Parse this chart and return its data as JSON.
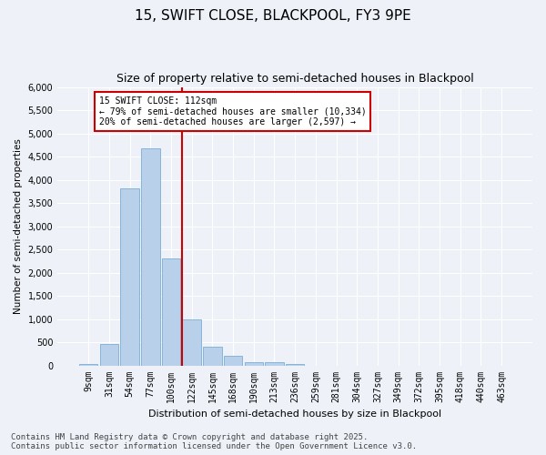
{
  "title": "15, SWIFT CLOSE, BLACKPOOL, FY3 9PE",
  "subtitle": "Size of property relative to semi-detached houses in Blackpool",
  "xlabel": "Distribution of semi-detached houses by size in Blackpool",
  "ylabel": "Number of semi-detached properties",
  "categories": [
    "9sqm",
    "31sqm",
    "54sqm",
    "77sqm",
    "100sqm",
    "122sqm",
    "145sqm",
    "168sqm",
    "190sqm",
    "213sqm",
    "236sqm",
    "259sqm",
    "281sqm",
    "304sqm",
    "327sqm",
    "349sqm",
    "372sqm",
    "395sqm",
    "418sqm",
    "440sqm",
    "463sqm"
  ],
  "values": [
    30,
    460,
    3820,
    4680,
    2310,
    1000,
    410,
    200,
    75,
    60,
    40,
    0,
    0,
    0,
    0,
    0,
    0,
    0,
    0,
    0,
    0
  ],
  "bar_color": "#b8d0ea",
  "bar_edge_color": "#7aaed4",
  "vline_x": 4.55,
  "vline_color": "#cc0000",
  "annotation_title": "15 SWIFT CLOSE: 112sqm",
  "annotation_line1": "← 79% of semi-detached houses are smaller (10,334)",
  "annotation_line2": "20% of semi-detached houses are larger (2,597) →",
  "annotation_box_color": "#cc0000",
  "ylim": [
    0,
    6000
  ],
  "yticks": [
    0,
    500,
    1000,
    1500,
    2000,
    2500,
    3000,
    3500,
    4000,
    4500,
    5000,
    5500,
    6000
  ],
  "footnote1": "Contains HM Land Registry data © Crown copyright and database right 2025.",
  "footnote2": "Contains public sector information licensed under the Open Government Licence v3.0.",
  "background_color": "#eef2f8",
  "grid_color": "#ffffff",
  "title_fontsize": 11,
  "subtitle_fontsize": 9,
  "footnote_fontsize": 6.5
}
